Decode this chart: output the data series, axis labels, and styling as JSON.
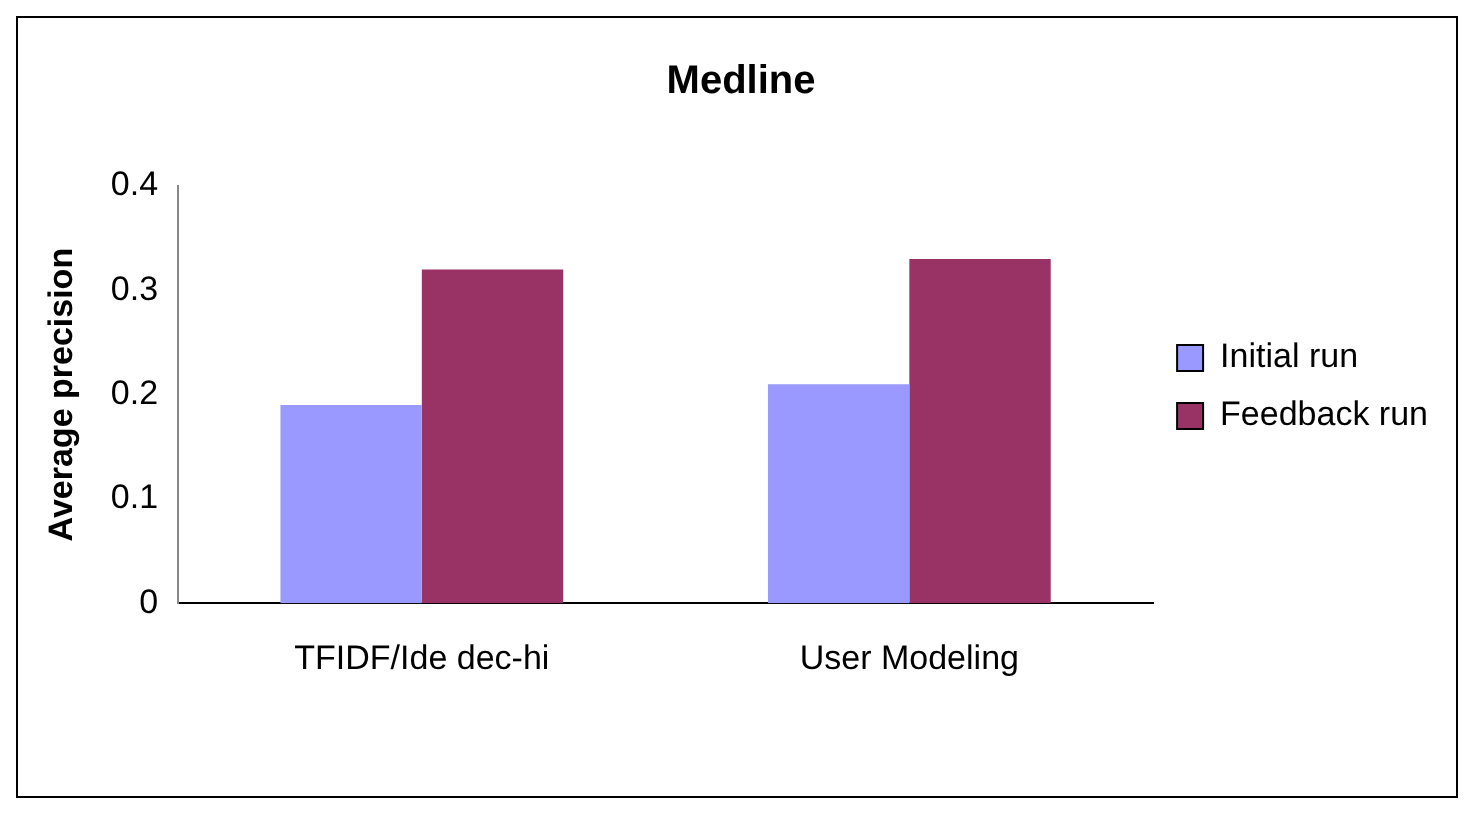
{
  "chart_data": {
    "type": "bar",
    "title": "Medline",
    "ylabel": "Average precision",
    "categories": [
      "TFIDF/Ide dec-hi",
      "User Modeling"
    ],
    "series": [
      {
        "name": "Initial run",
        "color": "#9999ff",
        "values": [
          0.19,
          0.21
        ]
      },
      {
        "name": "Feedback run",
        "color": "#993366",
        "values": [
          0.32,
          0.33
        ]
      }
    ],
    "ylim": [
      0,
      0.4
    ],
    "yticks": [
      0,
      0.1,
      0.2,
      0.3,
      0.4
    ],
    "grid": false,
    "legend": "right"
  }
}
